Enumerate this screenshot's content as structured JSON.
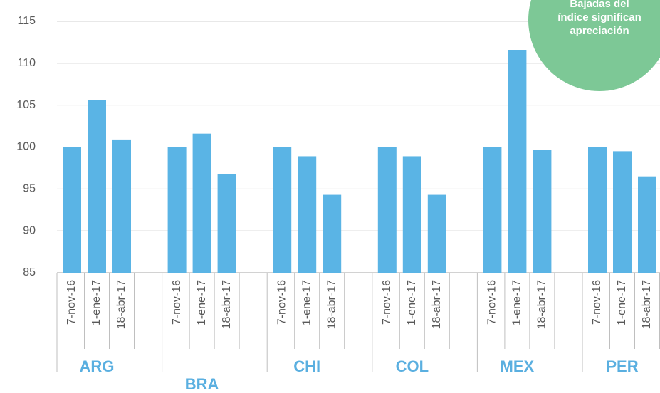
{
  "chart_data": {
    "type": "grouped_bar",
    "annotation": [
      "Bajadas del",
      "índice significan",
      "apreciación"
    ],
    "categories": [
      "7-nov-16",
      "1-ene-17",
      "18-abr-17"
    ],
    "groups": [
      {
        "name": "ARG",
        "values": [
          100,
          105.6,
          100.9
        ]
      },
      {
        "name": "BRA",
        "values": [
          100,
          101.6,
          96.8
        ]
      },
      {
        "name": "CHI",
        "values": [
          100,
          98.9,
          94.3
        ]
      },
      {
        "name": "COL",
        "values": [
          100,
          98.9,
          94.3
        ]
      },
      {
        "name": "MEX",
        "values": [
          100,
          111.6,
          99.7
        ]
      },
      {
        "name": "PER",
        "values": [
          100,
          99.5,
          96.5
        ]
      }
    ],
    "color": "#5ab4e5",
    "ylim": [
      85,
      115
    ],
    "yticks": [
      85,
      90,
      95,
      100,
      105,
      110,
      115
    ],
    "grid": true
  }
}
